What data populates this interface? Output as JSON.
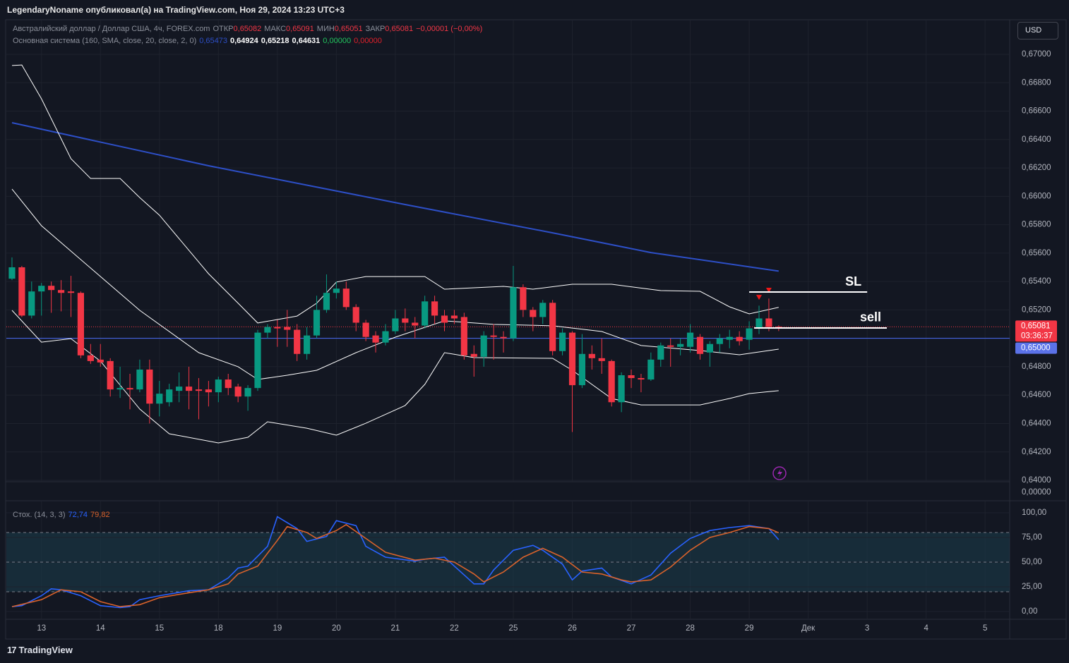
{
  "header": {
    "text": "LegendaryNoname опубликовал(а) на TradingView.com, Ноя 29, 2024 13:23 UTC+3"
  },
  "currency_button": "USD",
  "footer_logo": "TradingView",
  "chart_data": {
    "type": "candlestick",
    "title": "Австралийский доллар / Доллар США, 4ч, FOREX.com",
    "ohlc_legend": [
      {
        "label": "ОТКР",
        "value": "0,65082"
      },
      {
        "label": "МАКС",
        "value": "0,65091"
      },
      {
        "label": "МИН",
        "value": "0,65051"
      },
      {
        "label": "ЗАКР",
        "value": "0,65081"
      }
    ],
    "change": "−0,00001 (−0,00%)",
    "legend_color": "#f23645",
    "indicator_legend": {
      "name": "Основная система (160, SMA, close, 20, close, 2, 0)",
      "values": [
        {
          "text": "0,65473",
          "color": "#2d4fc7"
        },
        {
          "text": "0,64924",
          "color": "#ffffff"
        },
        {
          "text": "0,65218",
          "color": "#ffffff"
        },
        {
          "text": "0,64631",
          "color": "#ffffff"
        },
        {
          "text": "0,00000",
          "color": "#22c55e"
        },
        {
          "text": "0,00000",
          "color": "#e0202a"
        }
      ]
    },
    "up_color": "#089981",
    "down_color": "#f23645",
    "open": [
      0.6542,
      0.655,
      0.6516,
      0.6533,
      0.6537,
      0.6534,
      0.6533,
      0.6532,
      0.6488,
      0.6485,
      0.6484,
      0.6464,
      0.6465,
      0.6464,
      0.6478,
      0.6454,
      0.6455,
      0.6463,
      0.6466,
      0.6464,
      0.6464,
      0.6462,
      0.6471,
      0.6466,
      0.6459,
      0.6465,
      0.6504,
      0.6508,
      0.6508,
      0.6506,
      0.6489,
      0.6502,
      0.652,
      0.6532,
      0.6535,
      0.6522,
      0.6511,
      0.6502,
      0.6497,
      0.6505,
      0.6514,
      0.6511,
      0.6509,
      0.6526,
      0.6516,
      0.6516,
      0.6515,
      0.6489,
      0.6487,
      0.6502,
      0.6501,
      0.65,
      0.6536,
      0.652,
      0.6515,
      0.6525,
      0.6491,
      0.6504,
      0.6467,
      0.6489,
      0.6486,
      0.6484,
      0.6455,
      0.6474,
      0.6472,
      0.6471,
      0.6485,
      0.6495,
      0.6494,
      0.6494,
      0.6501,
      0.649,
      0.6496,
      0.6499,
      0.6501,
      0.6499,
      0.6507,
      0.6514,
      0.65082
    ],
    "high": [
      0.6557,
      0.6551,
      0.654,
      0.6539,
      0.654,
      0.6541,
      0.6544,
      0.6533,
      0.6496,
      0.6496,
      0.6486,
      0.648,
      0.6475,
      0.6485,
      0.6485,
      0.647,
      0.6468,
      0.6476,
      0.648,
      0.6472,
      0.647,
      0.6473,
      0.6475,
      0.6468,
      0.6467,
      0.6506,
      0.651,
      0.6513,
      0.652,
      0.651,
      0.6508,
      0.653,
      0.6545,
      0.654,
      0.654,
      0.6524,
      0.6513,
      0.6505,
      0.651,
      0.652,
      0.6521,
      0.6515,
      0.653,
      0.653,
      0.652,
      0.652,
      0.6518,
      0.6495,
      0.6505,
      0.651,
      0.6505,
      0.6551,
      0.6538,
      0.6522,
      0.6527,
      0.6527,
      0.6507,
      0.6505,
      0.6503,
      0.6495,
      0.65,
      0.6485,
      0.6476,
      0.6478,
      0.6475,
      0.649,
      0.6497,
      0.65,
      0.65,
      0.651,
      0.6503,
      0.6498,
      0.6503,
      0.6506,
      0.6505,
      0.6512,
      0.6523,
      0.6528,
      0.65091
    ],
    "low": [
      0.6541,
      0.6515,
      0.6514,
      0.6516,
      0.6518,
      0.6519,
      0.6515,
      0.6486,
      0.6482,
      0.648,
      0.6459,
      0.6458,
      0.645,
      0.6462,
      0.644,
      0.6445,
      0.6452,
      0.6455,
      0.645,
      0.6443,
      0.6452,
      0.6455,
      0.646,
      0.6455,
      0.6449,
      0.6463,
      0.65,
      0.6494,
      0.6494,
      0.6484,
      0.6485,
      0.65,
      0.6518,
      0.6528,
      0.652,
      0.6505,
      0.6498,
      0.649,
      0.6495,
      0.6503,
      0.6505,
      0.65,
      0.6507,
      0.651,
      0.6505,
      0.651,
      0.6485,
      0.6473,
      0.648,
      0.6485,
      0.649,
      0.6498,
      0.6515,
      0.6505,
      0.651,
      0.6488,
      0.6488,
      0.6434,
      0.6465,
      0.6478,
      0.6475,
      0.6452,
      0.6448,
      0.6465,
      0.6462,
      0.647,
      0.648,
      0.648,
      0.6488,
      0.649,
      0.6485,
      0.648,
      0.649,
      0.6493,
      0.6495,
      0.6492,
      0.6503,
      0.6505,
      0.65051
    ],
    "close": [
      0.655,
      0.6516,
      0.6533,
      0.6537,
      0.6534,
      0.6532,
      0.6532,
      0.6488,
      0.6484,
      0.6483,
      0.6464,
      0.6465,
      0.6464,
      0.6478,
      0.6454,
      0.6461,
      0.6464,
      0.6466,
      0.6463,
      0.6463,
      0.6462,
      0.6471,
      0.6465,
      0.6459,
      0.6465,
      0.6504,
      0.6508,
      0.6507,
      0.6506,
      0.6489,
      0.6502,
      0.652,
      0.6532,
      0.6535,
      0.6522,
      0.6511,
      0.6501,
      0.6497,
      0.6505,
      0.6514,
      0.6511,
      0.6509,
      0.6526,
      0.6516,
      0.6511,
      0.6514,
      0.6488,
      0.6487,
      0.6502,
      0.6501,
      0.65,
      0.6536,
      0.652,
      0.6515,
      0.6525,
      0.6491,
      0.6504,
      0.6467,
      0.6489,
      0.6486,
      0.6484,
      0.6455,
      0.6474,
      0.6472,
      0.6471,
      0.6485,
      0.6495,
      0.6494,
      0.6496,
      0.6504,
      0.6489,
      0.6496,
      0.65,
      0.6501,
      0.6498,
      0.6507,
      0.6514,
      0.6508,
      0.65081
    ],
    "overlays": [
      {
        "color": "#2d4fc7",
        "x": [
          0,
          20,
          40,
          55,
          65,
          78
        ],
        "values": [
          0.66518,
          0.66215,
          0.65942,
          0.65743,
          0.65604,
          0.65473
        ]
      },
      {
        "color": "#ffffff",
        "x": [
          0,
          1,
          3,
          6,
          8,
          11,
          13,
          15,
          20,
          23,
          25,
          29,
          31,
          33,
          36,
          42,
          44,
          50,
          53,
          57,
          61,
          66,
          70,
          73,
          75,
          78
        ],
        "values": [
          0.66921,
          0.66925,
          0.66687,
          0.66265,
          0.66126,
          0.66126,
          0.65991,
          0.65867,
          0.65455,
          0.65247,
          0.65108,
          0.65157,
          0.65247,
          0.65396,
          0.65435,
          0.65435,
          0.65346,
          0.65366,
          0.65346,
          0.65381,
          0.65381,
          0.65336,
          0.65331,
          0.65222,
          0.65172,
          0.65218
        ]
      },
      {
        "color": "#ffffff",
        "x": [
          0,
          3,
          8,
          13,
          19,
          23,
          25,
          28,
          31,
          35,
          39,
          44,
          49,
          55,
          60,
          64,
          70,
          74,
          78
        ],
        "values": [
          0.66051,
          0.65793,
          0.65495,
          0.65197,
          0.64899,
          0.648,
          0.6471,
          0.6474,
          0.64775,
          0.64899,
          0.65008,
          0.65123,
          0.65098,
          0.65088,
          0.65048,
          0.64949,
          0.64914,
          0.64884,
          0.64924
        ]
      },
      {
        "color": "#ffffff",
        "x": [
          0,
          3,
          6,
          9,
          13,
          16,
          21,
          24,
          26,
          30,
          33,
          36,
          40,
          42,
          44,
          47,
          55,
          57,
          61,
          64,
          70,
          73,
          75,
          78
        ],
        "values": [
          0.65197,
          0.64973,
          0.64998,
          0.64839,
          0.64502,
          0.64328,
          0.64263,
          0.64303,
          0.64412,
          0.64367,
          0.64318,
          0.64402,
          0.64527,
          0.64676,
          0.64899,
          0.64864,
          0.64859,
          0.64775,
          0.64576,
          0.64531,
          0.64531,
          0.64576,
          0.64611,
          0.64631
        ]
      }
    ],
    "signals": [
      {
        "x": 76,
        "value": 0.65286
      },
      {
        "x": 77,
        "value": 0.65336
      }
    ],
    "annotations": [
      {
        "label": "SL",
        "value": 0.65326,
        "x": [
          75,
          87
        ]
      },
      {
        "label": "sell",
        "value": 0.65073,
        "x": [
          75.5,
          89
        ]
      }
    ],
    "last_price": {
      "value": 0.65081,
      "label": "0,65081",
      "countdown": "03:36:37"
    },
    "price_line": {
      "value": 0.65,
      "label": "0,65000"
    },
    "volume_axis_label": "0,00000",
    "xlim": [
      -0.5,
      101.5
    ],
    "xticks": [
      {
        "value": 3,
        "label": "13"
      },
      {
        "value": 9,
        "label": "14"
      },
      {
        "value": 15,
        "label": "15"
      },
      {
        "value": 21,
        "label": "18"
      },
      {
        "value": 27,
        "label": "19"
      },
      {
        "value": 33,
        "label": "20"
      },
      {
        "value": 39,
        "label": "21"
      },
      {
        "value": 45,
        "label": "22"
      },
      {
        "value": 51,
        "label": "25"
      },
      {
        "value": 57,
        "label": "26"
      },
      {
        "value": 63,
        "label": "27"
      },
      {
        "value": 69,
        "label": "28"
      },
      {
        "value": 75,
        "label": "29"
      },
      {
        "value": 81,
        "label": "Дек"
      },
      {
        "value": 87,
        "label": "3"
      },
      {
        "value": 93,
        "label": "4"
      },
      {
        "value": 99,
        "label": "5"
      }
    ],
    "ylim": [
      0.6399,
      0.6723
    ],
    "yticks": [
      {
        "value": 0.64,
        "label": "0,64000"
      },
      {
        "value": 0.642,
        "label": "0,64200"
      },
      {
        "value": 0.644,
        "label": "0,64400"
      },
      {
        "value": 0.646,
        "label": "0,64600"
      },
      {
        "value": 0.648,
        "label": "0,64800"
      },
      {
        "value": 0.65,
        "label": "0,65000"
      },
      {
        "value": 0.652,
        "label": "0,65200"
      },
      {
        "value": 0.654,
        "label": "0,65400"
      },
      {
        "value": 0.656,
        "label": "0,65600"
      },
      {
        "value": 0.658,
        "label": "0,65800"
      },
      {
        "value": 0.66,
        "label": "0,66000"
      },
      {
        "value": 0.662,
        "label": "0,66200"
      },
      {
        "value": 0.664,
        "label": "0,66400"
      },
      {
        "value": 0.666,
        "label": "0,66600"
      },
      {
        "value": 0.668,
        "label": "0,66800"
      },
      {
        "value": 0.67,
        "label": "0,67000"
      }
    ],
    "grid": true,
    "stochastic": {
      "name": "Стох. (14, 3, 3)",
      "ylim": [
        -7.1,
        110.7
      ],
      "yticks": [
        {
          "value": 0,
          "label": "0,00"
        },
        {
          "value": 25,
          "label": "25,00"
        },
        {
          "value": 50,
          "label": "50,00"
        },
        {
          "value": 75,
          "label": "75,00"
        },
        {
          "value": 100,
          "label": "100,00"
        }
      ],
      "levels": [
        20,
        50,
        80
      ],
      "band_color": "#1b3a4a",
      "series": [
        {
          "name": "%K",
          "value_label": "72,74",
          "color": "#2962ff",
          "x": [
            0,
            1,
            3,
            4,
            5,
            7,
            9,
            11,
            12,
            13,
            15,
            18,
            20,
            22,
            23,
            24,
            26,
            27,
            29,
            30,
            32,
            33,
            35,
            36,
            38,
            41,
            42,
            44,
            46,
            47,
            48,
            49,
            51,
            53,
            54,
            56,
            57,
            58,
            60,
            61,
            63,
            65,
            67,
            69,
            71,
            73,
            75,
            77,
            78
          ],
          "values": [
            5,
            6,
            16,
            23,
            22,
            16,
            6,
            4,
            5,
            12,
            16,
            21,
            22,
            34,
            44,
            46,
            66,
            96,
            84,
            71,
            76,
            92,
            87,
            66,
            55,
            51,
            53,
            55,
            37,
            28,
            28,
            42,
            62,
            67,
            62,
            48,
            32,
            41,
            44,
            35,
            28,
            37,
            59,
            74,
            82,
            85,
            87,
            84,
            72.74
          ]
        },
        {
          "name": "%D",
          "value_label": "79,82",
          "color": "#d9622b",
          "x": [
            0,
            3,
            5,
            7,
            9,
            11,
            13,
            15,
            18,
            20,
            22,
            23,
            25,
            27,
            28,
            30,
            31,
            33,
            34,
            36,
            38,
            41,
            43,
            45,
            47,
            48,
            50,
            52,
            54,
            56,
            58,
            60,
            62,
            63,
            65,
            67,
            69,
            71,
            73,
            75,
            77,
            78
          ],
          "values": [
            5,
            12,
            22,
            20,
            10,
            5,
            7,
            14,
            19,
            22,
            28,
            38,
            46,
            72,
            86,
            80,
            74,
            82,
            88,
            74,
            60,
            52,
            54,
            50,
            38,
            30,
            40,
            55,
            64,
            55,
            40,
            38,
            32,
            30,
            32,
            45,
            62,
            75,
            80,
            86,
            84,
            79.82
          ]
        }
      ]
    }
  }
}
